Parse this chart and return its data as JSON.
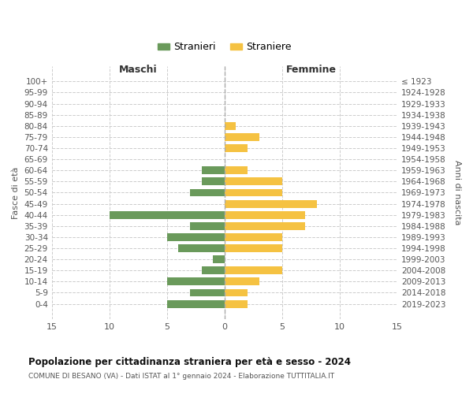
{
  "age_groups": [
    "100+",
    "95-99",
    "90-94",
    "85-89",
    "80-84",
    "75-79",
    "70-74",
    "65-69",
    "60-64",
    "55-59",
    "50-54",
    "45-49",
    "40-44",
    "35-39",
    "30-34",
    "25-29",
    "20-24",
    "15-19",
    "10-14",
    "5-9",
    "0-4"
  ],
  "birth_years": [
    "≤ 1923",
    "1924-1928",
    "1929-1933",
    "1934-1938",
    "1939-1943",
    "1944-1948",
    "1949-1953",
    "1954-1958",
    "1959-1963",
    "1964-1968",
    "1969-1973",
    "1974-1978",
    "1979-1983",
    "1984-1988",
    "1989-1993",
    "1994-1998",
    "1999-2003",
    "2004-2008",
    "2009-2013",
    "2014-2018",
    "2019-2023"
  ],
  "males": [
    0,
    0,
    0,
    0,
    0,
    0,
    0,
    0,
    2,
    2,
    3,
    0,
    10,
    3,
    5,
    4,
    1,
    2,
    5,
    3,
    5
  ],
  "females": [
    0,
    0,
    0,
    0,
    1,
    3,
    2,
    0,
    2,
    5,
    5,
    8,
    7,
    7,
    5,
    5,
    0,
    5,
    3,
    2,
    2
  ],
  "male_color": "#6a9a5b",
  "female_color": "#f5c242",
  "title": "Popolazione per cittadinanza straniera per età e sesso - 2024",
  "subtitle": "COMUNE DI BESANO (VA) - Dati ISTAT al 1° gennaio 2024 - Elaborazione TUTTITALIA.IT",
  "header_left": "Maschi",
  "header_right": "Femmine",
  "ylabel_left": "Fasce di età",
  "ylabel_right": "Anni di nascita",
  "legend_male": "Stranieri",
  "legend_female": "Straniere",
  "xlim": 15,
  "bar_height": 0.7,
  "background_color": "#ffffff",
  "grid_color": "#cccccc"
}
